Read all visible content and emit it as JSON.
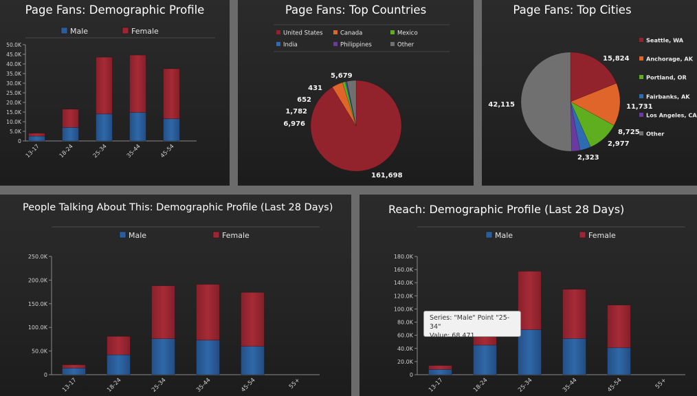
{
  "chart_data": [
    {
      "id": "fans-demo",
      "type": "bar",
      "stacked": true,
      "title": "Page Fans: Demographic Profile",
      "categories": [
        "13-17",
        "18-24",
        "25-34",
        "35-44",
        "45-54"
      ],
      "series": [
        {
          "name": "Male",
          "color": "#2a5d9c",
          "values": [
            2500,
            7000,
            14000,
            14800,
            11500
          ]
        },
        {
          "name": "Female",
          "color": "#9b2733",
          "values": [
            1500,
            9500,
            29500,
            29800,
            26000
          ]
        }
      ],
      "ylim": [
        0,
        50000
      ],
      "yticks": [
        0,
        5000,
        10000,
        15000,
        20000,
        25000,
        30000,
        35000,
        40000,
        45000,
        50000
      ],
      "ytick_labels": [
        "0",
        "5.0K",
        "10.0K",
        "15.0K",
        "20.0K",
        "25.0K",
        "30.0K",
        "35.0K",
        "40.0K",
        "45.0K",
        "50.0K"
      ],
      "legend": "top"
    },
    {
      "id": "fans-countries",
      "type": "pie",
      "title": "Page Fans: Top Countries",
      "slices": [
        {
          "name": "United States",
          "value": 161698,
          "color": "#92232c",
          "label": "161,698"
        },
        {
          "name": "Canada",
          "value": 6976,
          "color": "#e0652a",
          "label": "6,976"
        },
        {
          "name": "Mexico",
          "value": 1782,
          "color": "#5fae1f",
          "label": "1,782"
        },
        {
          "name": "India",
          "value": 652,
          "color": "#2f6bb3",
          "label": "652"
        },
        {
          "name": "Philippines",
          "value": 431,
          "color": "#6a3aa0",
          "label": "431"
        },
        {
          "name": "Other",
          "value": 5679,
          "color": "#707070",
          "label": "5,679"
        }
      ],
      "legend": "top"
    },
    {
      "id": "fans-cities",
      "type": "pie",
      "title": "Page Fans: Top Cities",
      "slices": [
        {
          "name": "Seattle, WA",
          "value": 15824,
          "color": "#92232c",
          "label": "15,824"
        },
        {
          "name": "Anchorage, AK",
          "value": 11731,
          "color": "#e0652a",
          "label": "11,731"
        },
        {
          "name": "Portland, OR",
          "value": 8725,
          "color": "#5fae1f",
          "label": "8,725"
        },
        {
          "name": "Fairbanks, AK",
          "value": 2977,
          "color": "#2f6bb3",
          "label": "2,977"
        },
        {
          "name": "Los Angeles, CA",
          "value": 2323,
          "color": "#6a3aa0",
          "label": "2,323"
        },
        {
          "name": "Other",
          "value": 42115,
          "color": "#707070",
          "label": "42,115"
        }
      ],
      "legend": "right"
    },
    {
      "id": "talking-demo",
      "type": "bar",
      "stacked": true,
      "title": "People Talking About This: Demographic Profile (Last 28 Days)",
      "categories": [
        "13-17",
        "18-24",
        "25-34",
        "35-44",
        "45-54",
        "55+"
      ],
      "series": [
        {
          "name": "Male",
          "color": "#2a5d9c",
          "values": [
            14000,
            42000,
            76000,
            73000,
            60000,
            0
          ]
        },
        {
          "name": "Female",
          "color": "#9b2733",
          "values": [
            7000,
            39000,
            112000,
            118000,
            114000,
            0
          ]
        }
      ],
      "ylim": [
        0,
        250000
      ],
      "yticks": [
        0,
        50000,
        100000,
        150000,
        200000,
        250000
      ],
      "ytick_labels": [
        "0",
        "50.0K",
        "100.0K",
        "150.0K",
        "200.0K",
        "250.0K"
      ],
      "legend": "top"
    },
    {
      "id": "reach-demo",
      "type": "bar",
      "stacked": true,
      "title": "Reach: Demographic Profile (Last 28 Days)",
      "categories": [
        "13-17",
        "18-24",
        "25-34",
        "35-44",
        "45-54",
        "55+"
      ],
      "series": [
        {
          "name": "Male",
          "color": "#2a5d9c",
          "values": [
            8000,
            45000,
            68471,
            55000,
            41000,
            0
          ]
        },
        {
          "name": "Female",
          "color": "#9b2733",
          "values": [
            6000,
            22000,
            89000,
            75000,
            65000,
            0
          ]
        }
      ],
      "ylim": [
        0,
        180000
      ],
      "yticks": [
        0,
        20000,
        40000,
        60000,
        80000,
        100000,
        120000,
        140000,
        160000,
        180000
      ],
      "ytick_labels": [
        "0",
        "20.0K",
        "40.0K",
        "60.0K",
        "80.0K",
        "100.0K",
        "120.0K",
        "140.0K",
        "160.0K",
        "180.0K"
      ],
      "legend": "top",
      "tooltip": {
        "line1": "Series: \"Male\" Point \"25-34\"",
        "line2": "Value: 68,471"
      }
    }
  ]
}
